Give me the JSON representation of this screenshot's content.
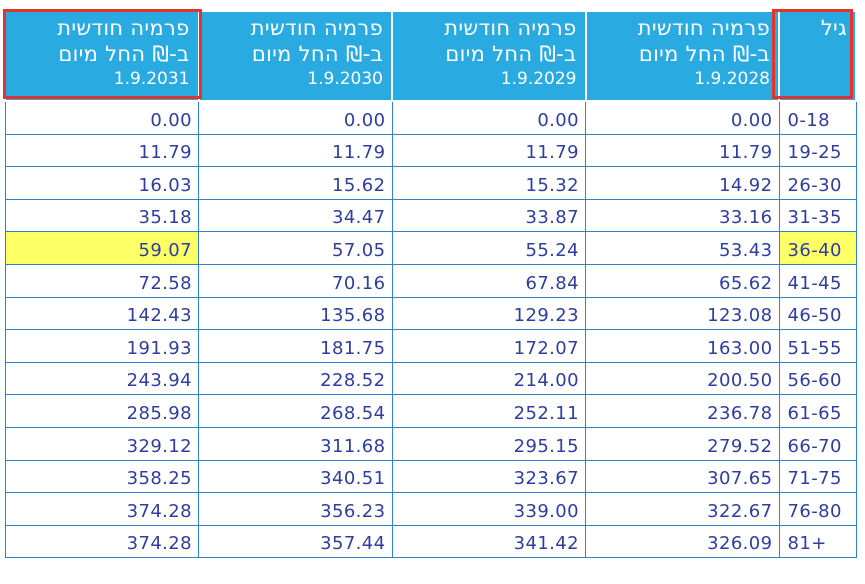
{
  "header": {
    "age_label": "גיל",
    "premium_line1": "פרמיה חודשית",
    "premium_line2": "ב-₪ החל מיום",
    "dates": [
      "1.9.2028",
      "1.9.2029",
      "1.9.2030",
      "1.9.2031"
    ]
  },
  "colors": {
    "header_bg": "#29abe2",
    "cell_text": "#2f3e9e",
    "grid": "#2e84c6",
    "highlight": "#ffff66",
    "marker_box": "#e2342d"
  },
  "rows": [
    {
      "age": "0-18",
      "values": [
        "0.00",
        "0.00",
        "0.00",
        "0.00"
      ]
    },
    {
      "age": "19-25",
      "values": [
        "11.79",
        "11.79",
        "11.79",
        "11.79"
      ]
    },
    {
      "age": "26-30",
      "values": [
        "14.92",
        "15.32",
        "15.62",
        "16.03"
      ]
    },
    {
      "age": "31-35",
      "values": [
        "33.16",
        "33.87",
        "34.47",
        "35.18"
      ]
    },
    {
      "age": "36-40",
      "values": [
        "53.43",
        "55.24",
        "57.05",
        "59.07"
      ]
    },
    {
      "age": "41-45",
      "values": [
        "65.62",
        "67.84",
        "70.16",
        "72.58"
      ]
    },
    {
      "age": "46-50",
      "values": [
        "123.08",
        "129.23",
        "135.68",
        "142.43"
      ]
    },
    {
      "age": "51-55",
      "values": [
        "163.00",
        "172.07",
        "181.75",
        "191.93"
      ]
    },
    {
      "age": "56-60",
      "values": [
        "200.50",
        "214.00",
        "228.52",
        "243.94"
      ]
    },
    {
      "age": "61-65",
      "values": [
        "236.78",
        "252.11",
        "268.54",
        "285.98"
      ]
    },
    {
      "age": "66-70",
      "values": [
        "279.52",
        "295.15",
        "311.68",
        "329.12"
      ]
    },
    {
      "age": "71-75",
      "values": [
        "307.65",
        "323.67",
        "340.51",
        "358.25"
      ]
    },
    {
      "age": "76-80",
      "values": [
        "322.67",
        "339.00",
        "356.23",
        "374.28"
      ]
    },
    {
      "age": "81+",
      "values": [
        "326.09",
        "341.42",
        "357.44",
        "374.28"
      ]
    }
  ]
}
